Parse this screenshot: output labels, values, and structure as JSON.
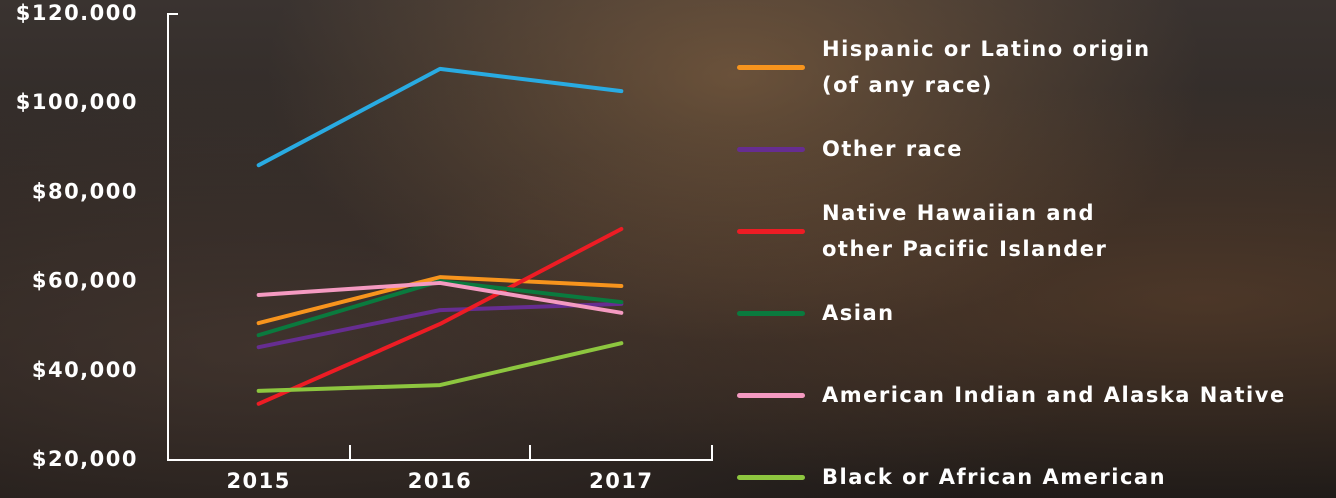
{
  "chart_data": {
    "type": "line",
    "categories": [
      "2015",
      "2016",
      "2017"
    ],
    "ylim": [
      20000,
      120000
    ],
    "yticks": [
      {
        "value": 20000,
        "label": "$20,000"
      },
      {
        "value": 40000,
        "label": "$40,000"
      },
      {
        "value": 60000,
        "label": "$60,000"
      },
      {
        "value": 80000,
        "label": "$80,000"
      },
      {
        "value": 100000,
        "label": "$100,000"
      },
      {
        "value": 120000,
        "label": "$120.000"
      }
    ],
    "series": [
      {
        "color": "#29abe2",
        "values": [
          86100,
          107700,
          102700
        ]
      },
      {
        "name": "Hispanic or Latino origin\n(of any race)",
        "color": "#f7941d",
        "values": [
          50700,
          61000,
          59000
        ]
      },
      {
        "name": "Other race",
        "color": "#662d91",
        "values": [
          45300,
          53600,
          55000
        ]
      },
      {
        "name": "Native Hawaiian and\nother Pacific Islander",
        "color": "#ed1c24",
        "values": [
          32600,
          50500,
          71800
        ]
      },
      {
        "name": "Asian",
        "color": "#0a7a3e",
        "values": [
          48000,
          60100,
          55400
        ]
      },
      {
        "name": "American Indian and Alaska Native",
        "color": "#f49ac1",
        "values": [
          57000,
          59700,
          53000
        ]
      },
      {
        "name": "Black or African American",
        "color": "#8dc63f",
        "values": [
          35500,
          36800,
          46200
        ]
      }
    ]
  }
}
